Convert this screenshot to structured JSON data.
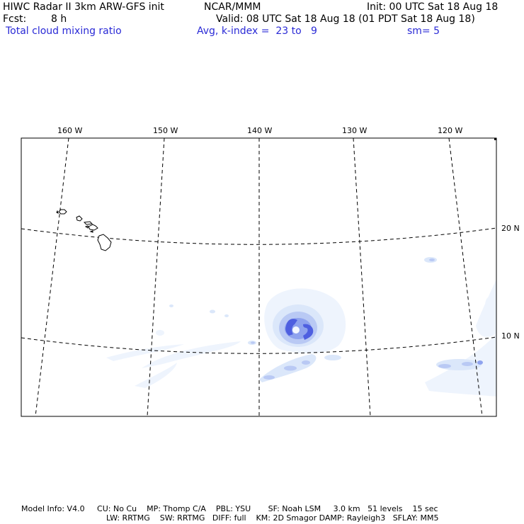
{
  "header": {
    "title": "HIWC Radar II 3km ARW-GFS init",
    "org": "NCAR/MMM",
    "init": "Init: 00 UTC Sat 18 Aug 18",
    "fcst_label": "Fcst:",
    "fcst_value": "8 h",
    "valid": "Valid: 08 UTC Sat 18 Aug 18 (01 PDT Sat 18 Aug 18)",
    "field": "Total cloud mixing ratio",
    "avg": "Avg, k-index =  23 to   9",
    "smooth": "sm= 5"
  },
  "map": {
    "lon_labels": [
      "160 W",
      "150 W",
      "140 W",
      "130 W",
      "120 W"
    ],
    "lat_labels": [
      "20 N",
      "10 N"
    ],
    "colors": {
      "cloud_faint": "#eef4fd",
      "cloud_light": "#dbe7fa",
      "cloud_mid": "#b9c9f4",
      "cloud_strong": "#8fa3ee",
      "cloud_core": "#4e5fe0",
      "eye": "#f4f8ff"
    }
  },
  "footer": {
    "line1": "Model Info: V4.0     CU: No Cu    MP: Thomp C/A    PBL: YSU       SF: Noah LSM     3.0 km   51 levels    15 sec",
    "line2": "LW: RRTMG    SW: RRTMG   DIFF: full    KM: 2D Smagor DAMP: Rayleigh3   SFLAY: MM5"
  }
}
